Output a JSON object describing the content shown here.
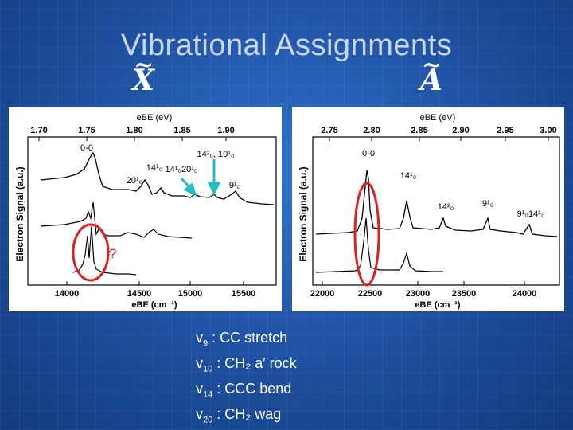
{
  "slide": {
    "title": "Vibrational Assignments",
    "state_left": "X",
    "state_right": "A",
    "tilde": "~"
  },
  "left_panel": {
    "top_axis_label": "eBE (eV)",
    "top_ticks": [
      "1.70",
      "1.75",
      "1.80",
      "1.85",
      "1.90"
    ],
    "bottom_axis_label": "eBE (cm⁻¹)",
    "bottom_ticks": [
      "14000",
      "14500",
      "15000",
      "15500"
    ],
    "y_label": "Electron Signal (a.u.)",
    "peak_labels": {
      "origin": "0-0",
      "p20": "20¹₀",
      "p14": "14¹₀",
      "p14_20": "14¹₀20¹₀",
      "p14sq_10": "14²₀, 10¹₀",
      "p9": "9¹₀"
    },
    "annotation_question": "?"
  },
  "right_panel": {
    "top_axis_label": "eBE (eV)",
    "top_ticks": [
      "2.75",
      "2.80",
      "2.85",
      "2.90",
      "2.95",
      "3.00"
    ],
    "bottom_axis_label": "eBE (cm⁻¹)",
    "bottom_ticks": [
      "22000",
      "22500",
      "23000",
      "23500",
      "24000"
    ],
    "y_label": "Electron Signal (a.u.)",
    "peak_labels": {
      "origin": "0-0",
      "p14": "14¹₀",
      "p14sq": "14²₀",
      "p9": "9¹₀",
      "p9_14": "9¹₀14¹₀"
    }
  },
  "legend": [
    {
      "mode": "v",
      "sub": "9",
      "text": " : CC stretch"
    },
    {
      "mode": "v",
      "sub": "10",
      "text": " : CH₂ a′ rock"
    },
    {
      "mode": "v",
      "sub": "14",
      "text": " : CCC bend"
    },
    {
      "mode": "v",
      "sub": "20",
      "text": " : CH₂ wag"
    }
  ],
  "colors": {
    "background": "#1d4f9e",
    "highlight_oval": "#e02020",
    "arrow": "#20c0c0"
  }
}
